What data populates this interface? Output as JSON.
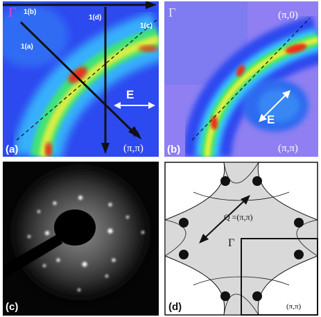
{
  "panel_a": {
    "tag": "(a)",
    "gamma": "Γ",
    "corner": "(π,π)",
    "cut_1a": "1(a)",
    "cut_1b": "1(b)",
    "cut_1c": "1(c)",
    "cut_1d": "1(d)",
    "energy": "E"
  },
  "panel_b": {
    "tag": "(b)",
    "gamma": "Γ",
    "corner_top": "(π,0)",
    "corner_bottom": "(π,π)",
    "energy": "E"
  },
  "panel_c": {
    "tag": "(c)"
  },
  "panel_d": {
    "tag": "(d)",
    "gamma": "Γ",
    "q_vector": "Q =(π,π)",
    "corner": "(π,π)"
  },
  "colors": {
    "map_background": "#2d49f0",
    "map_low": "#3ad3ff",
    "map_mid": "#3fe86a",
    "map_high": "#f5f03a",
    "map_peak": "#e8301c",
    "fermi_surface_fill": "#d9d9d9"
  }
}
